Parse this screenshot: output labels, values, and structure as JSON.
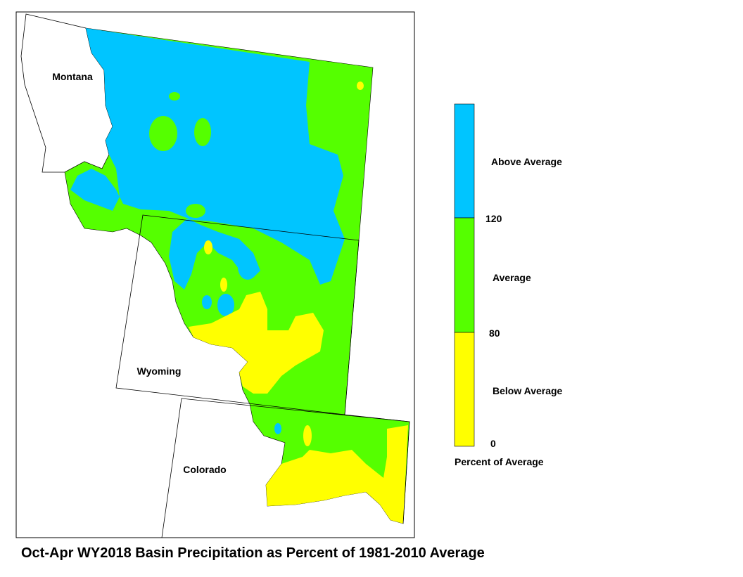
{
  "title": "Oct-Apr WY2018 Basin Precipitation as Percent of 1981-2010 Average",
  "map": {
    "labels": [
      "Montana",
      "Wyoming",
      "Colorado"
    ]
  },
  "legend": {
    "categories": [
      "Above Average",
      "Average",
      "Below Average"
    ],
    "ticks": [
      120,
      80,
      0
    ],
    "caption": "Percent of Average"
  }
}
